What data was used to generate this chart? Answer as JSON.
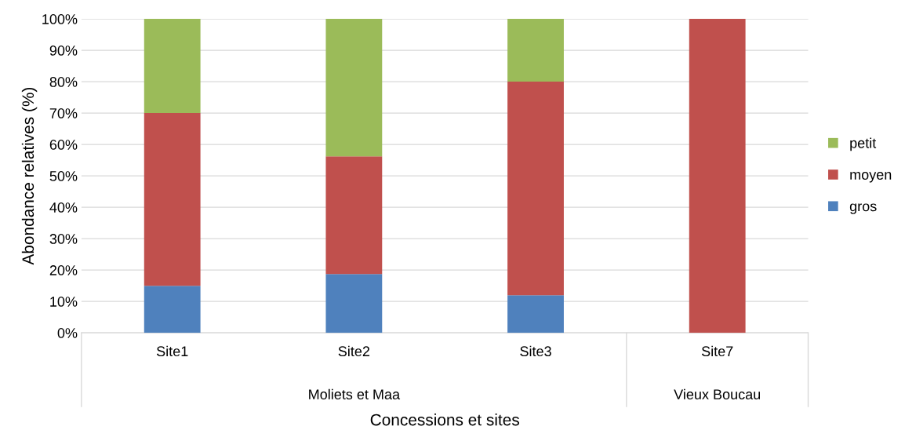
{
  "chart_data": {
    "type": "bar",
    "stacked": true,
    "xlabel": "Concessions et sites",
    "ylabel": "Abondance relatives (%)",
    "categories": [
      "Site1",
      "Site2",
      "Site3",
      "Site7"
    ],
    "series": [
      {
        "name": "gros",
        "color": "#4f81bd",
        "values": [
          15,
          18.7,
          12,
          0
        ]
      },
      {
        "name": "moyen",
        "color": "#c0504d",
        "values": [
          55,
          37.5,
          68,
          100
        ]
      },
      {
        "name": "petit",
        "color": "#9bbb59",
        "values": [
          30,
          43.8,
          20,
          0
        ]
      }
    ],
    "ylim": [
      0,
      100
    ],
    "yticks": [
      {
        "value": 0,
        "label": "0%"
      },
      {
        "value": 10,
        "label": "10%"
      },
      {
        "value": 20,
        "label": "20%"
      },
      {
        "value": 30,
        "label": "30%"
      },
      {
        "value": 40,
        "label": "40%"
      },
      {
        "value": 50,
        "label": "50%"
      },
      {
        "value": 60,
        "label": "60%"
      },
      {
        "value": 70,
        "label": "70%"
      },
      {
        "value": 80,
        "label": "80%"
      },
      {
        "value": 90,
        "label": "90%"
      },
      {
        "value": 100,
        "label": "100%"
      }
    ],
    "grid": "y",
    "legend": "right",
    "annotations": [
      "Moliets et Maa",
      "Vieux Boucau"
    ]
  }
}
